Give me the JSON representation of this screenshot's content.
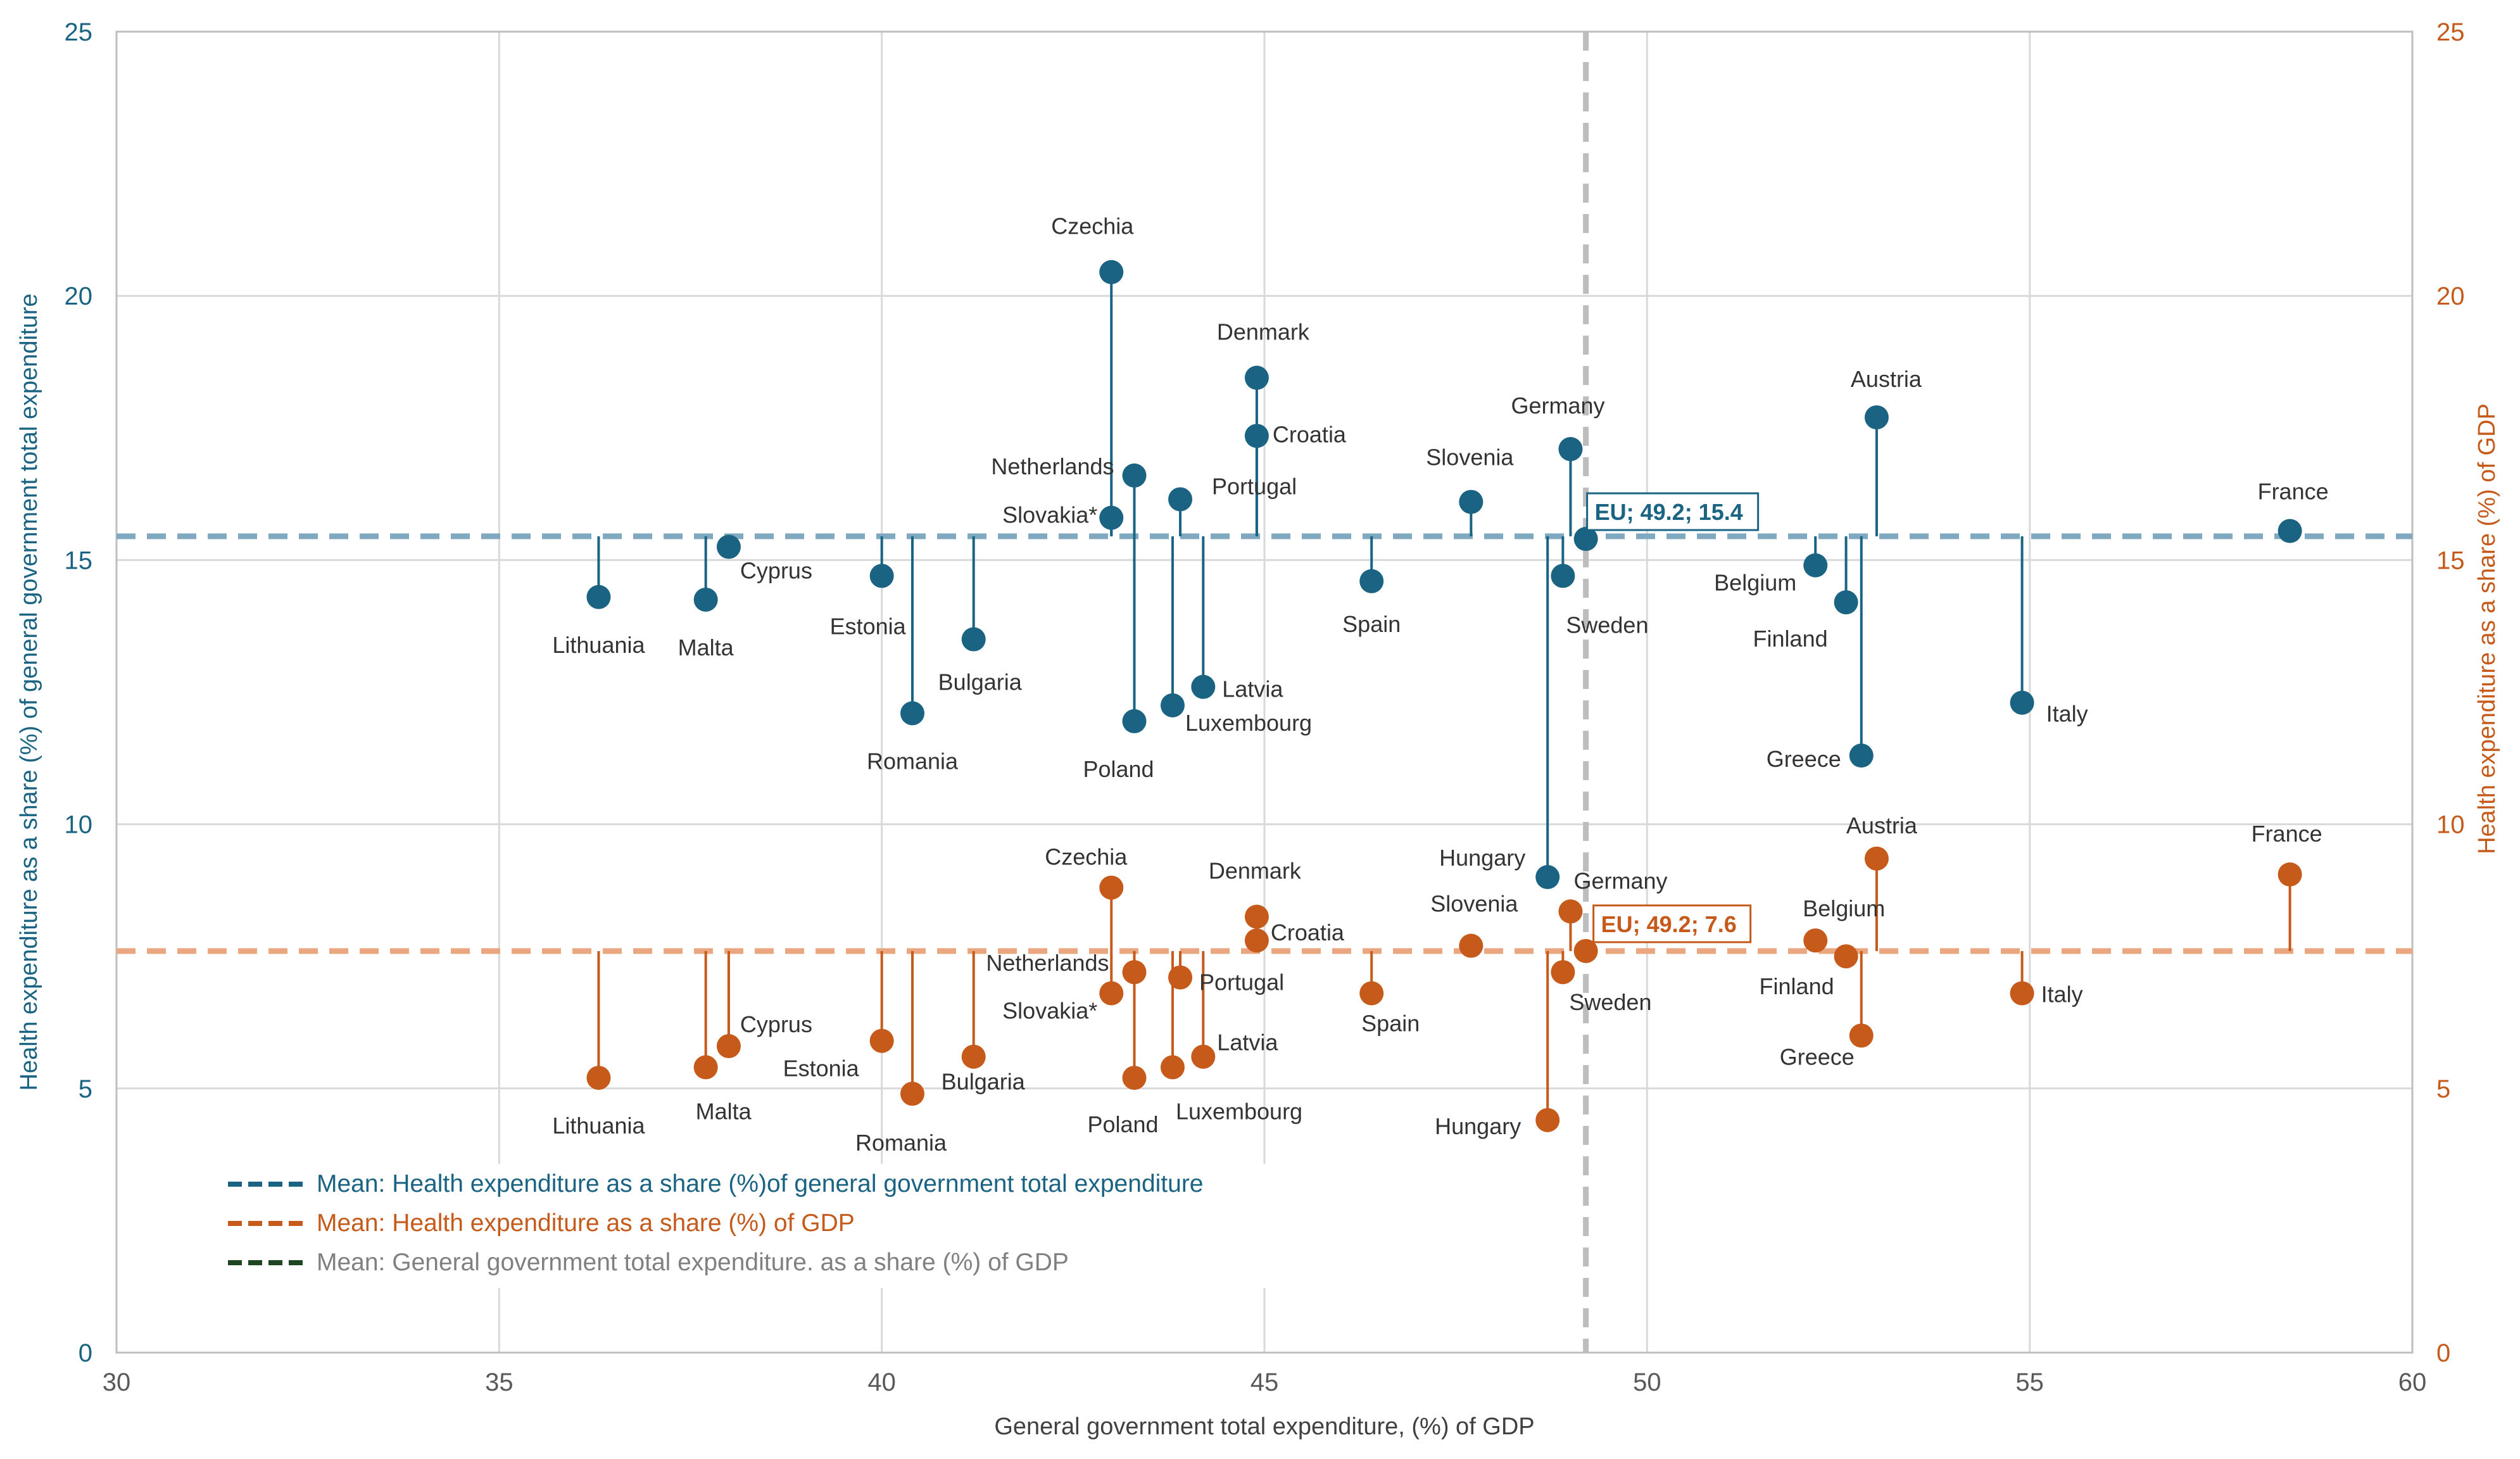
{
  "chart_data": {
    "type": "scatter",
    "x_axis": {
      "label": "General government total expenditure, (%) of GDP",
      "min": 30,
      "max": 60,
      "ticks": [
        "30",
        "35",
        "40",
        "45",
        "50",
        "55",
        "60"
      ]
    },
    "y_left": {
      "label": "Health expenditure as a share (%) of general government total expenditure",
      "min": 0,
      "max": 25,
      "ticks": [
        "0",
        "5",
        "10",
        "15",
        "20",
        "25"
      ]
    },
    "y_right": {
      "label": "Health expenditure as a share (%) of GDP",
      "min": 0,
      "max": 25,
      "ticks": [
        "0",
        "5",
        "10",
        "15",
        "20",
        "25"
      ]
    },
    "grid": true,
    "colors": {
      "blue": "#1a6383",
      "orange": "#c55a1b",
      "blue_mean": "#7fa9c0",
      "orange_mean": "#eaa77f",
      "gray_mean": "#bdbdbd",
      "grid": "#d9d9d9",
      "legend_gray": "#808080"
    },
    "means": {
      "x_gov_exp": 49.2,
      "y_health_gov": 15.45,
      "y_health_gdp": 7.6,
      "blue_label": "EU; 49.2; 15.4",
      "orange_label": "EU; 49.2; 7.6"
    },
    "series": [
      {
        "name": "Health expenditure as a share (%) of general government total expenditure",
        "axis": "left",
        "color": "#1a6383",
        "points": [
          {
            "country": "Czechia",
            "x": 43.0,
            "y": 20.45
          },
          {
            "country": "Denmark",
            "x": 44.9,
            "y": 18.45
          },
          {
            "country": "Croatia",
            "x": 44.9,
            "y": 17.35
          },
          {
            "country": "Austria",
            "x": 53.0,
            "y": 17.7
          },
          {
            "country": "Germany",
            "x": 49.0,
            "y": 17.1
          },
          {
            "country": "Netherlands",
            "x": 43.3,
            "y": 16.6
          },
          {
            "country": "Portugal",
            "x": 43.9,
            "y": 16.15
          },
          {
            "country": "Slovenia",
            "x": 47.7,
            "y": 16.1
          },
          {
            "country": "Slovakia*",
            "x": 43.0,
            "y": 15.8
          },
          {
            "country": "France",
            "x": 58.4,
            "y": 15.55
          },
          {
            "country": "Cyprus",
            "x": 38.0,
            "y": 15.25
          },
          {
            "country": "Belgium",
            "x": 52.2,
            "y": 14.9
          },
          {
            "country": "Estonia",
            "x": 40.0,
            "y": 14.7
          },
          {
            "country": "Sweden",
            "x": 48.9,
            "y": 14.7
          },
          {
            "country": "Spain",
            "x": 46.4,
            "y": 14.6
          },
          {
            "country": "Lithuania",
            "x": 36.3,
            "y": 14.3
          },
          {
            "country": "Malta",
            "x": 37.7,
            "y": 14.25
          },
          {
            "country": "Finland",
            "x": 52.6,
            "y": 14.2
          },
          {
            "country": "Bulgaria",
            "x": 41.2,
            "y": 13.5
          },
          {
            "country": "Latvia",
            "x": 44.2,
            "y": 12.6
          },
          {
            "country": "Italy",
            "x": 54.9,
            "y": 12.3
          },
          {
            "country": "Luxembourg",
            "x": 43.8,
            "y": 12.25
          },
          {
            "country": "Romania",
            "x": 40.4,
            "y": 12.1
          },
          {
            "country": "Poland",
            "x": 43.3,
            "y": 11.95
          },
          {
            "country": "Greece",
            "x": 52.8,
            "y": 11.3
          },
          {
            "country": "Hungary",
            "x": 48.7,
            "y": 9.0
          },
          {
            "country": "EU",
            "x": 49.2,
            "y": 15.4
          }
        ]
      },
      {
        "name": "Health expenditure as a share (%) of GDP",
        "axis": "right",
        "color": "#c55a1b",
        "points": [
          {
            "country": "Austria",
            "x": 53.0,
            "y": 9.35
          },
          {
            "country": "France",
            "x": 58.4,
            "y": 9.05
          },
          {
            "country": "Czechia",
            "x": 43.0,
            "y": 8.8
          },
          {
            "country": "Germany",
            "x": 49.0,
            "y": 8.35
          },
          {
            "country": "Denmark",
            "x": 44.9,
            "y": 8.25
          },
          {
            "country": "Croatia",
            "x": 44.9,
            "y": 7.8
          },
          {
            "country": "Belgium",
            "x": 52.2,
            "y": 7.8
          },
          {
            "country": "Slovenia",
            "x": 47.7,
            "y": 7.7
          },
          {
            "country": "Finland",
            "x": 52.6,
            "y": 7.5
          },
          {
            "country": "Netherlands",
            "x": 43.3,
            "y": 7.2
          },
          {
            "country": "Sweden",
            "x": 48.9,
            "y": 7.2
          },
          {
            "country": "Portugal",
            "x": 43.9,
            "y": 7.1
          },
          {
            "country": "Spain",
            "x": 46.4,
            "y": 6.8
          },
          {
            "country": "Slovakia*",
            "x": 43.0,
            "y": 6.8
          },
          {
            "country": "Italy",
            "x": 54.9,
            "y": 6.8
          },
          {
            "country": "Greece",
            "x": 52.8,
            "y": 6.0
          },
          {
            "country": "Estonia",
            "x": 40.0,
            "y": 5.9
          },
          {
            "country": "Cyprus",
            "x": 38.0,
            "y": 5.8
          },
          {
            "country": "Latvia",
            "x": 44.2,
            "y": 5.6
          },
          {
            "country": "Bulgaria",
            "x": 41.2,
            "y": 5.6
          },
          {
            "country": "Malta",
            "x": 37.7,
            "y": 5.4
          },
          {
            "country": "Luxembourg",
            "x": 43.8,
            "y": 5.4
          },
          {
            "country": "Lithuania",
            "x": 36.3,
            "y": 5.2
          },
          {
            "country": "Poland",
            "x": 43.3,
            "y": 5.2
          },
          {
            "country": "Romania",
            "x": 40.4,
            "y": 4.9
          },
          {
            "country": "Hungary",
            "x": 48.7,
            "y": 4.4
          },
          {
            "country": "EU",
            "x": 49.2,
            "y": 7.6
          }
        ]
      }
    ],
    "legend": [
      {
        "label": "Mean: Health expenditure as a share (%)of general government total expenditure",
        "line_color": "#1a6383",
        "text_color": "#1a6383"
      },
      {
        "label": "Mean: Health expenditure as a share (%) of GDP",
        "line_color": "#c55a1b",
        "text_color": "#c55a1b"
      },
      {
        "label": "Mean: General government total expenditure. as a share (%) of GDP",
        "line_color": "#1e4620",
        "text_color": "#808080"
      }
    ]
  }
}
